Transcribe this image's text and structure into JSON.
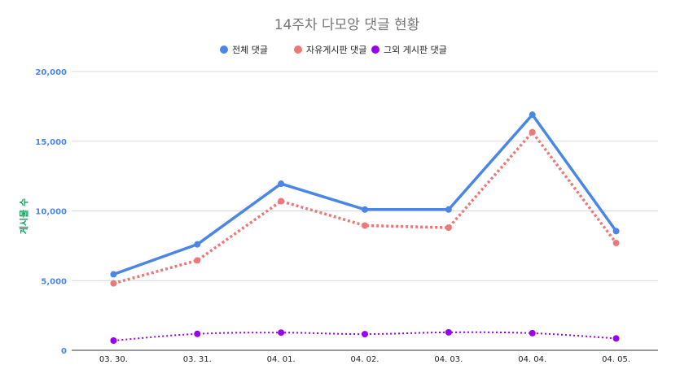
{
  "chart_data": {
    "type": "line",
    "title": "14주차 다모앙 댓글 현황",
    "ylabel": "게시물 수",
    "xlabel": "",
    "categories": [
      "03. 30.",
      "03. 31.",
      "04. 01.",
      "04. 02.",
      "04. 03.",
      "04. 04.",
      "04. 05."
    ],
    "ylim": [
      0,
      20000
    ],
    "yticks": [
      "0",
      "5,000",
      "10,000",
      "15,000",
      "20,000"
    ],
    "ytick_values": [
      0,
      5000,
      10000,
      15000,
      20000
    ],
    "grid": true,
    "legend_position": "top",
    "series": [
      {
        "name": "전체 댓글",
        "color": "#4a86e8",
        "style": "solid",
        "values": [
          5450,
          7600,
          11950,
          10100,
          10100,
          16900,
          8550
        ]
      },
      {
        "name": "자유게시판 댓글",
        "color": "#ea7a7a",
        "style": "dotted",
        "values": [
          4800,
          6450,
          10700,
          8950,
          8800,
          15650,
          7700
        ]
      },
      {
        "name": "그외 게시판 댓글",
        "color": "#9900ee",
        "style": "dotted-smooth",
        "values": [
          700,
          1180,
          1270,
          1160,
          1290,
          1230,
          850
        ]
      }
    ]
  }
}
